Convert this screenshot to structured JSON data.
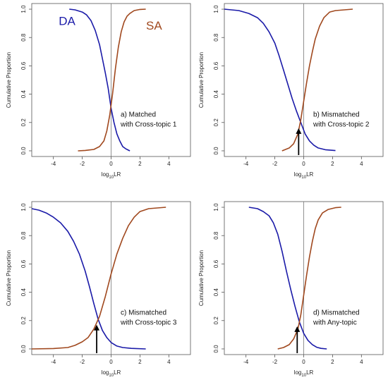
{
  "colors": {
    "da": "#1a1aa8",
    "sa": "#a0481e",
    "frame": "#555555",
    "zero_line": "#777777",
    "arrow": "#000000"
  },
  "series_labels": {
    "da": "DA",
    "sa": "SA"
  },
  "chart_data": [
    {
      "type": "line",
      "panel": "top-left",
      "xlabel": "log",
      "xlabel_sub": "10",
      "xlabel_suffix": "LR",
      "ylabel": "Cumulative Proportion",
      "xlim": [
        -5.5,
        5.5
      ],
      "ylim": [
        -0.04,
        1.04
      ],
      "xticks": [
        -4,
        -2,
        0,
        2,
        4
      ],
      "yticks": [
        0.0,
        0.2,
        0.4,
        0.6,
        0.8,
        1.0
      ],
      "ytick_labels": [
        "0.0",
        "0.2",
        "0.4",
        "0.6",
        "0.8",
        "1.0"
      ],
      "annotation": [
        "a) Matched",
        "with Cross-topic 1"
      ],
      "show_series_labels": true,
      "arrow": null,
      "series": [
        {
          "name": "DA",
          "color_key": "da",
          "x": [
            -2.9,
            -2.5,
            -2.0,
            -1.7,
            -1.4,
            -1.1,
            -0.8,
            -0.6,
            -0.4,
            -0.2,
            0.0,
            0.2,
            0.4,
            0.6,
            0.8,
            1.0,
            1.2,
            1.3
          ],
          "y": [
            1.0,
            0.995,
            0.98,
            0.96,
            0.92,
            0.85,
            0.75,
            0.65,
            0.55,
            0.44,
            0.3,
            0.2,
            0.12,
            0.07,
            0.03,
            0.015,
            0.005,
            0.0
          ]
        },
        {
          "name": "SA",
          "color_key": "sa",
          "x": [
            -2.3,
            -1.8,
            -1.2,
            -0.8,
            -0.5,
            -0.3,
            -0.1,
            0.1,
            0.3,
            0.5,
            0.7,
            0.9,
            1.1,
            1.3,
            1.6,
            2.0,
            2.4
          ],
          "y": [
            0.0,
            0.003,
            0.01,
            0.03,
            0.07,
            0.14,
            0.25,
            0.4,
            0.58,
            0.73,
            0.84,
            0.91,
            0.95,
            0.97,
            0.99,
            0.998,
            1.0
          ]
        }
      ]
    },
    {
      "type": "line",
      "panel": "top-right",
      "xlabel": "log",
      "xlabel_sub": "10",
      "xlabel_suffix": "LR",
      "ylabel": "Cumulative Proportion",
      "xlim": [
        -5.5,
        5.5
      ],
      "ylim": [
        -0.04,
        1.04
      ],
      "xticks": [
        -4,
        -2,
        0,
        2,
        4
      ],
      "yticks": [
        0.0,
        0.2,
        0.4,
        0.6,
        0.8,
        1.0
      ],
      "ytick_labels": [
        "0.0",
        "0.2",
        "0.4",
        "0.6",
        "0.8",
        "1.0"
      ],
      "annotation": [
        "b) Mismatched",
        "with Cross-topic 2"
      ],
      "show_series_labels": false,
      "arrow": {
        "x": -0.35,
        "y_from": -0.03,
        "y_to": 0.16
      },
      "series": [
        {
          "name": "DA",
          "color_key": "da",
          "x": [
            -5.5,
            -4.5,
            -3.8,
            -3.2,
            -2.8,
            -2.4,
            -2.0,
            -1.7,
            -1.4,
            -1.1,
            -0.8,
            -0.5,
            -0.2,
            0.1,
            0.4,
            0.7,
            1.0,
            1.5,
            2.2
          ],
          "y": [
            1.0,
            0.99,
            0.97,
            0.94,
            0.9,
            0.84,
            0.76,
            0.67,
            0.57,
            0.47,
            0.37,
            0.28,
            0.2,
            0.12,
            0.07,
            0.04,
            0.02,
            0.008,
            0.002
          ]
        },
        {
          "name": "SA",
          "color_key": "sa",
          "x": [
            -1.5,
            -1.0,
            -0.7,
            -0.4,
            -0.2,
            0.0,
            0.2,
            0.4,
            0.6,
            0.8,
            1.1,
            1.4,
            1.8,
            2.2,
            2.8,
            3.4
          ],
          "y": [
            0.0,
            0.02,
            0.05,
            0.12,
            0.22,
            0.35,
            0.48,
            0.6,
            0.7,
            0.79,
            0.88,
            0.94,
            0.98,
            0.99,
            0.995,
            1.0
          ]
        }
      ]
    },
    {
      "type": "line",
      "panel": "bottom-left",
      "xlabel": "log",
      "xlabel_sub": "10",
      "xlabel_suffix": "LR",
      "ylabel": "Cumulative Proportion",
      "xlim": [
        -5.5,
        5.5
      ],
      "ylim": [
        -0.04,
        1.04
      ],
      "xticks": [
        -4,
        -2,
        0,
        2,
        4
      ],
      "yticks": [
        0.0,
        0.2,
        0.4,
        0.6,
        0.8,
        1.0
      ],
      "ytick_labels": [
        "0.0",
        "0.2",
        "0.4",
        "0.6",
        "0.8",
        "1.0"
      ],
      "annotation": [
        "c) Mismatched",
        "with Cross-topic 3"
      ],
      "show_series_labels": false,
      "arrow": {
        "x": -1.0,
        "y_from": -0.03,
        "y_to": 0.17
      },
      "series": [
        {
          "name": "DA",
          "color_key": "da",
          "x": [
            -5.5,
            -5.0,
            -4.5,
            -4.0,
            -3.5,
            -3.0,
            -2.6,
            -2.2,
            -1.8,
            -1.5,
            -1.2,
            -0.9,
            -0.6,
            -0.3,
            0.0,
            0.4,
            0.8,
            1.4,
            2.4
          ],
          "y": [
            0.99,
            0.98,
            0.96,
            0.93,
            0.89,
            0.83,
            0.76,
            0.67,
            0.55,
            0.44,
            0.32,
            0.21,
            0.13,
            0.08,
            0.045,
            0.02,
            0.01,
            0.004,
            0.0
          ]
        },
        {
          "name": "SA",
          "color_key": "sa",
          "x": [
            -5.5,
            -4.0,
            -3.0,
            -2.5,
            -2.0,
            -1.6,
            -1.2,
            -0.8,
            -0.4,
            0.0,
            0.4,
            0.8,
            1.2,
            1.6,
            2.0,
            2.6,
            3.2,
            3.8
          ],
          "y": [
            0.0,
            0.003,
            0.01,
            0.025,
            0.05,
            0.08,
            0.14,
            0.23,
            0.37,
            0.53,
            0.67,
            0.78,
            0.87,
            0.93,
            0.97,
            0.99,
            0.995,
            1.0
          ]
        }
      ]
    },
    {
      "type": "line",
      "panel": "bottom-right",
      "xlabel": "log",
      "xlabel_sub": "10",
      "xlabel_suffix": "LR",
      "ylabel": "Cumulative Proportion",
      "xlim": [
        -5.5,
        5.5
      ],
      "ylim": [
        -0.04,
        1.04
      ],
      "xticks": [
        -4,
        -2,
        0,
        2,
        4
      ],
      "yticks": [
        0.0,
        0.2,
        0.4,
        0.6,
        0.8,
        1.0
      ],
      "ytick_labels": [
        "0.0",
        "0.2",
        "0.4",
        "0.6",
        "0.8",
        "1.0"
      ],
      "annotation": [
        "d) Mismatched",
        "with Any-topic"
      ],
      "show_series_labels": false,
      "arrow": {
        "x": -0.45,
        "y_from": -0.03,
        "y_to": 0.16
      },
      "series": [
        {
          "name": "DA",
          "color_key": "da",
          "x": [
            -3.8,
            -3.2,
            -2.8,
            -2.4,
            -2.1,
            -1.8,
            -1.5,
            -1.2,
            -0.9,
            -0.6,
            -0.3,
            0.0,
            0.3,
            0.6,
            0.9,
            1.2,
            1.6
          ],
          "y": [
            1.0,
            0.99,
            0.97,
            0.94,
            0.89,
            0.81,
            0.69,
            0.55,
            0.42,
            0.3,
            0.19,
            0.11,
            0.06,
            0.03,
            0.012,
            0.004,
            0.0
          ]
        },
        {
          "name": "SA",
          "color_key": "sa",
          "x": [
            -1.8,
            -1.4,
            -1.0,
            -0.7,
            -0.4,
            -0.2,
            0.0,
            0.2,
            0.4,
            0.6,
            0.8,
            1.0,
            1.3,
            1.7,
            2.2,
            2.6
          ],
          "y": [
            0.0,
            0.01,
            0.03,
            0.07,
            0.14,
            0.24,
            0.38,
            0.52,
            0.65,
            0.76,
            0.85,
            0.91,
            0.96,
            0.985,
            0.997,
            1.0
          ]
        }
      ]
    }
  ]
}
